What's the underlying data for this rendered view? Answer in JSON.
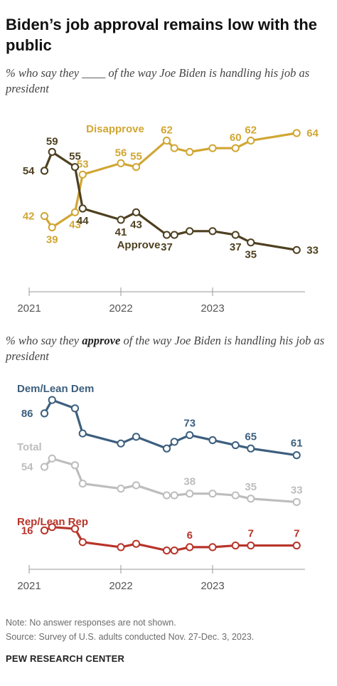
{
  "title": "Biden’s job approval remains low with the public",
  "subtitle1": "% who say they ____ of the way Joe Biden is handling his job as president",
  "subtitle2_pre": "% who say they ",
  "subtitle2_bold": "approve",
  "subtitle2_post": " of the way Joe Biden is handling his job as president",
  "note": "Note: No answer responses are not shown.",
  "source": "Source: Survey of U.S. adults conducted Nov. 27-Dec. 3, 2023.",
  "brand": "PEW RESEARCH CENTER",
  "colors": {
    "disapprove": "#d1a633",
    "approve": "#4e4020",
    "dem": "#3d5f7e",
    "total": "#bdbdbd",
    "rep": "#b8342a",
    "axis": "#9a9a9a",
    "tick_text": "#555555"
  },
  "chart_data": [
    {
      "type": "line",
      "x": [
        "2021-03",
        "2021-04",
        "2021-07",
        "2021-08",
        "2022-01",
        "2022-03",
        "2022-07",
        "2022-08",
        "2022-10",
        "2023-01",
        "2023-04",
        "2023-06",
        "2023-12"
      ],
      "series": [
        {
          "name": "Disapprove",
          "values": [
            42,
            39,
            43,
            53,
            56,
            55,
            62,
            60,
            59,
            60,
            60,
            62,
            64
          ],
          "labels": [
            "42",
            "39",
            "43",
            "53",
            "56",
            "55",
            "62",
            "",
            "",
            "",
            "60",
            "62",
            "64"
          ]
        },
        {
          "name": "Approve",
          "values": [
            54,
            59,
            55,
            44,
            41,
            43,
            37,
            37,
            38,
            38,
            37,
            35,
            33
          ],
          "labels": [
            "54",
            "59",
            "55",
            "44",
            "41",
            "43",
            "37",
            "",
            "",
            "",
            "37",
            "35",
            "33"
          ]
        }
      ],
      "xaxis_ticks": [
        "2021",
        "2022",
        "2023"
      ]
    },
    {
      "type": "line",
      "x": [
        "2021-03",
        "2021-04",
        "2021-07",
        "2021-08",
        "2022-01",
        "2022-03",
        "2022-07",
        "2022-08",
        "2022-10",
        "2023-01",
        "2023-04",
        "2023-06",
        "2023-12"
      ],
      "series": [
        {
          "name": "Dem/Lean Dem",
          "values": [
            86,
            94,
            89,
            74,
            68,
            72,
            65,
            69,
            73,
            70,
            67,
            65,
            61
          ],
          "labels": [
            "86",
            "",
            "",
            "",
            "",
            "",
            "",
            "",
            "73",
            "",
            "",
            "65",
            "61"
          ]
        },
        {
          "name": "Total",
          "values": [
            54,
            59,
            55,
            44,
            41,
            43,
            37,
            37,
            38,
            38,
            37,
            35,
            33
          ],
          "labels": [
            "54",
            "",
            "",
            "",
            "",
            "",
            "",
            "",
            "38",
            "",
            "",
            "35",
            "33"
          ]
        },
        {
          "name": "Rep/Lean Rep",
          "values": [
            16,
            18,
            17,
            9,
            6,
            8,
            4,
            4,
            6,
            6,
            7,
            7,
            7
          ],
          "labels": [
            "16",
            "",
            "",
            "",
            "",
            "",
            "",
            "",
            "6",
            "",
            "",
            "7",
            "7"
          ]
        }
      ],
      "xaxis_ticks": [
        "2021",
        "2022",
        "2023"
      ]
    }
  ]
}
